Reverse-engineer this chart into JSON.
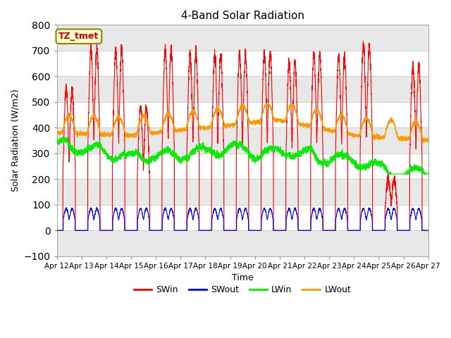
{
  "title": "4-Band Solar Radiation",
  "xlabel": "Time",
  "ylabel": "Solar Radiation (W/m2)",
  "ylim": [
    -100,
    800
  ],
  "xlim": [
    0,
    360
  ],
  "x_tick_labels": [
    "Apr 12",
    "Apr 13",
    "Apr 14",
    "Apr 15",
    "Apr 16",
    "Apr 17",
    "Apr 18",
    "Apr 19",
    "Apr 20",
    "Apr 21",
    "Apr 22",
    "Apr 23",
    "Apr 24",
    "Apr 25",
    "Apr 26",
    "Apr 27"
  ],
  "legend_label": "TZ_tmet",
  "colors": {
    "SWin": "#ff0000",
    "SWout": "#0000ff",
    "LWin": "#00ee00",
    "LWout": "#ff9900"
  },
  "band_colors": [
    "#ffffff",
    "#e8e8e8"
  ],
  "yticks": [
    -100,
    0,
    100,
    200,
    300,
    400,
    500,
    600,
    700,
    800
  ]
}
